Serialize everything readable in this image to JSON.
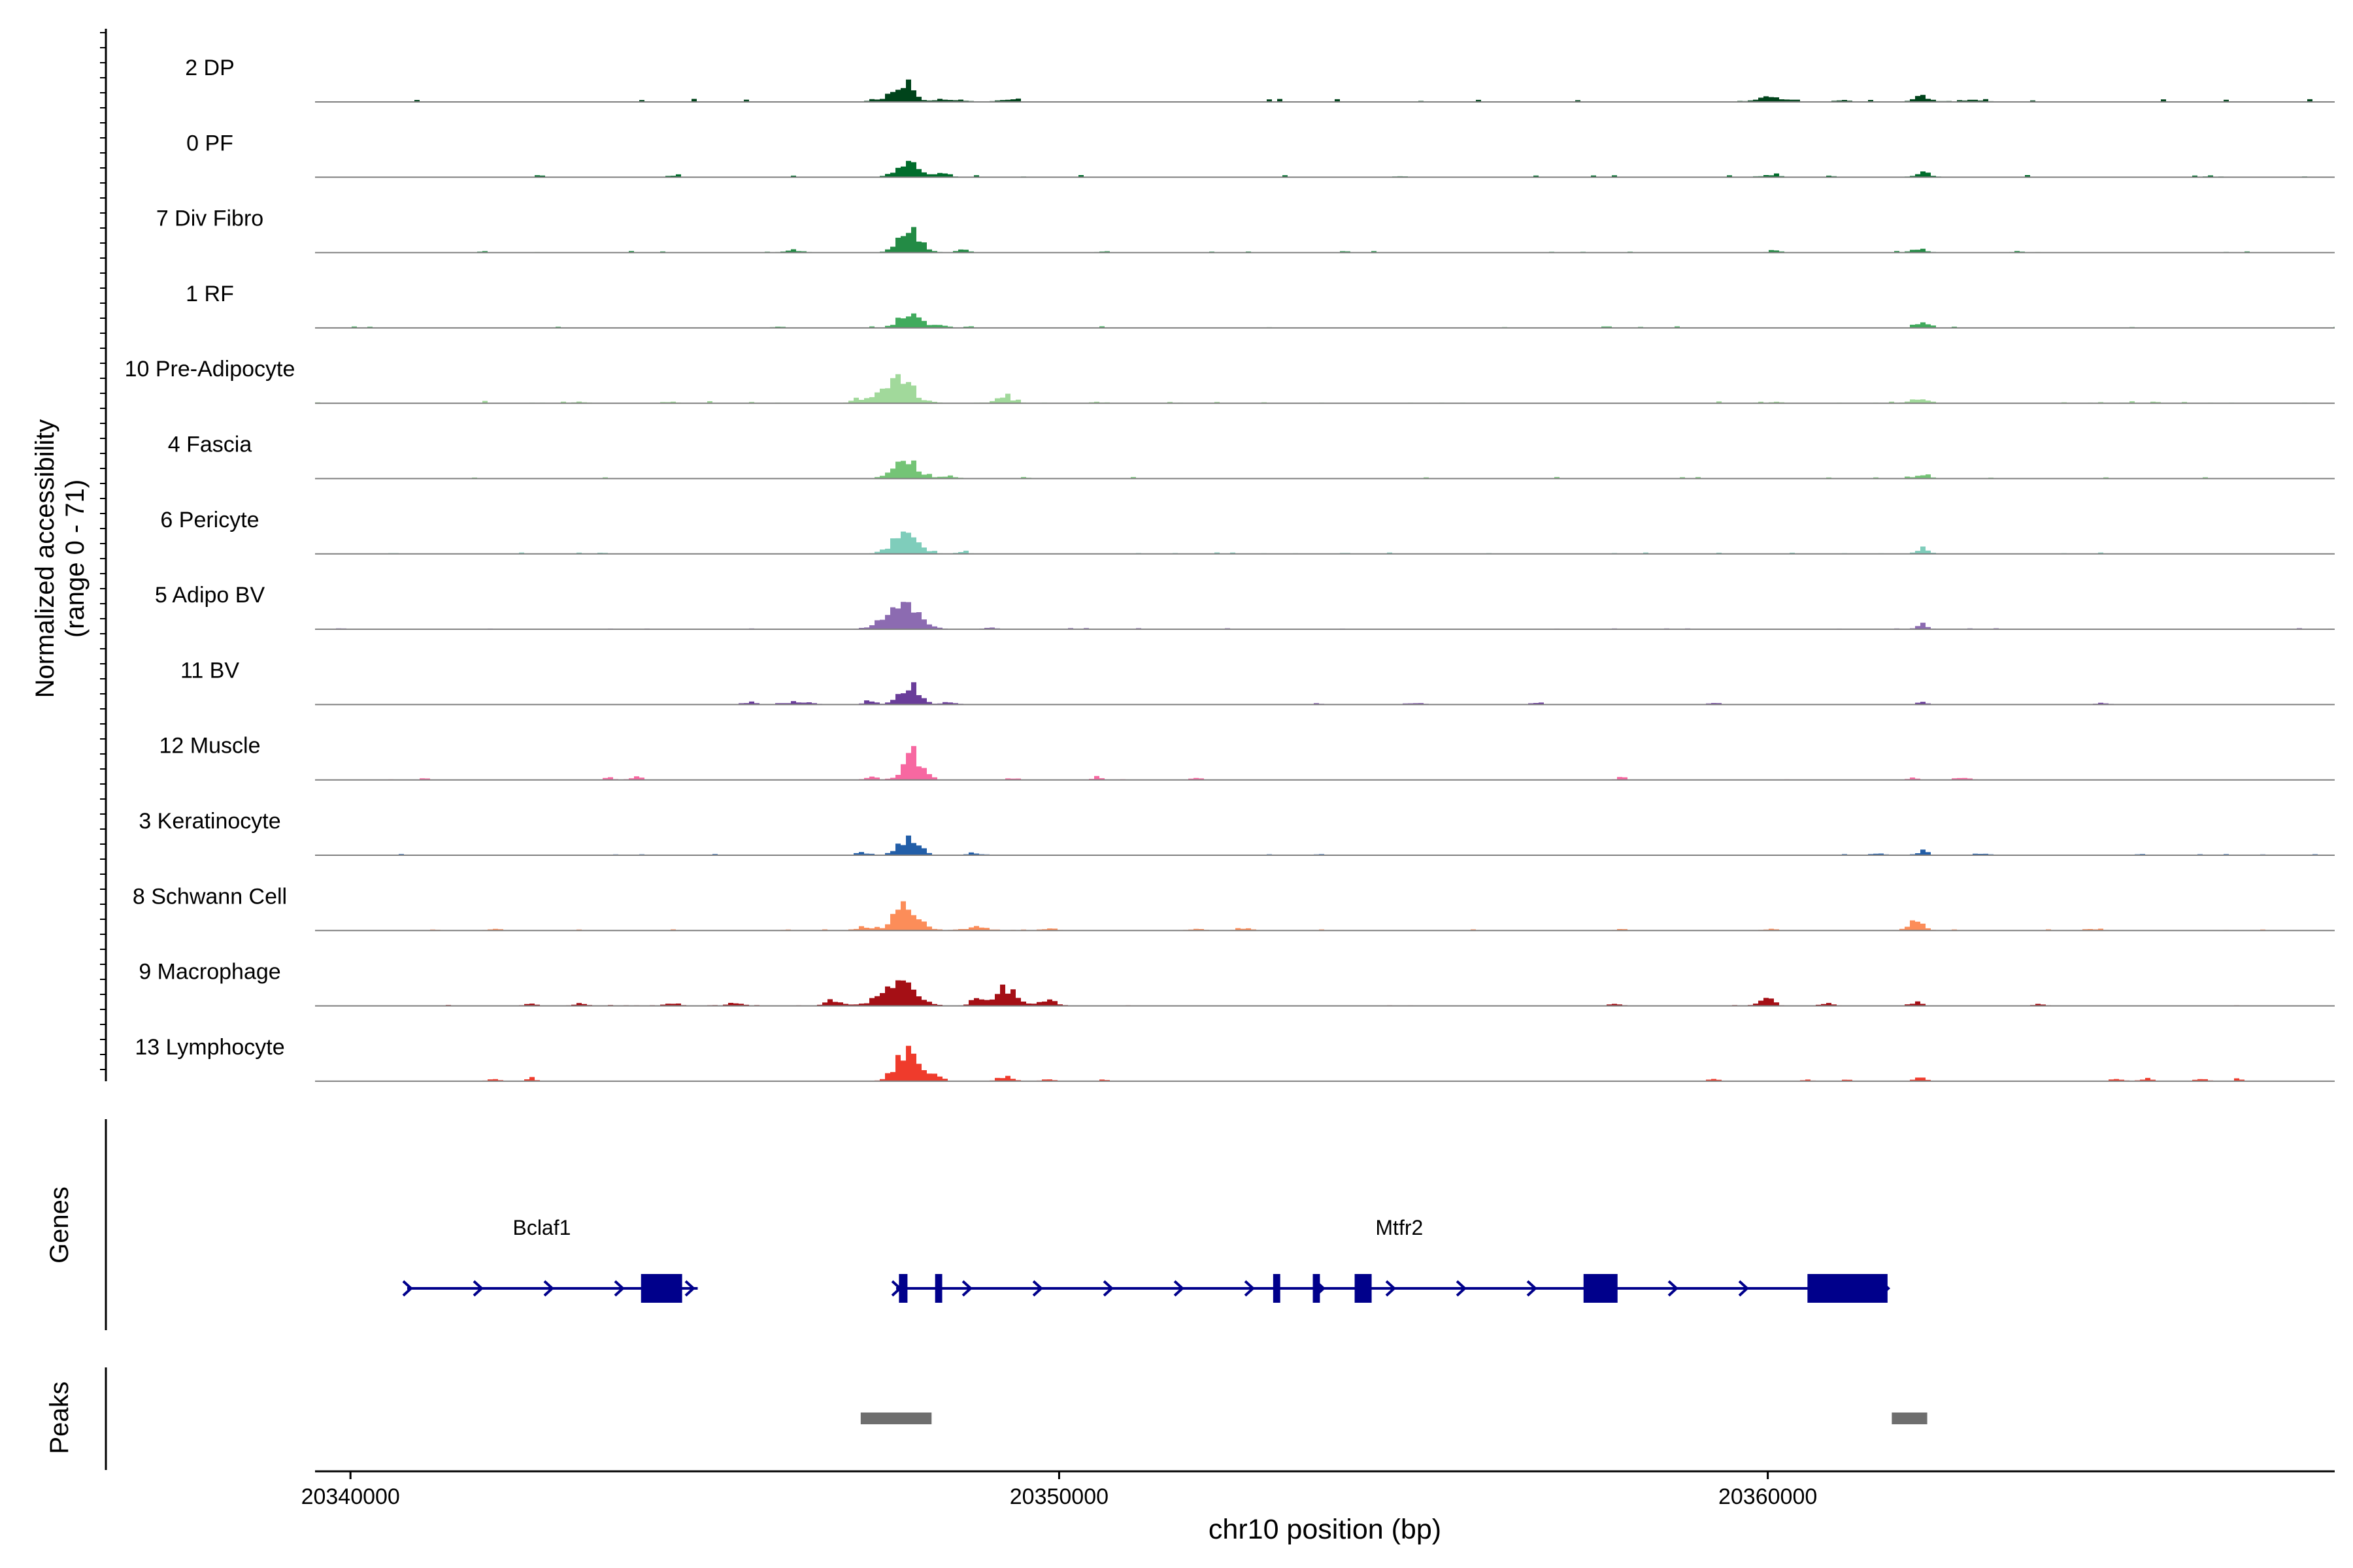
{
  "chart_data": {
    "type": "area",
    "xlabel": "chr10 position (bp)",
    "ylabel_line1": "Normalized accessibility",
    "ylabel_line2": "(range 0 - 71)",
    "xlim": [
      20339500,
      20368000
    ],
    "ylim": [
      0,
      71
    ],
    "x_ticks": [
      {
        "value": 20340000,
        "label": "20340000"
      },
      {
        "value": 20350000,
        "label": "20350000"
      },
      {
        "value": 20360000,
        "label": "20360000"
      }
    ],
    "tracks": [
      {
        "label": "2 DP",
        "color": "#00441b",
        "base": 1.0,
        "peaks": [
          [
            20347800,
            18,
            130
          ],
          [
            20347500,
            3,
            180
          ],
          [
            20348400,
            3,
            150
          ],
          [
            20360000,
            5,
            160
          ],
          [
            20362150,
            6,
            110
          ],
          [
            20349200,
            1.5,
            120
          ],
          [
            20361000,
            2,
            100
          ],
          [
            20362800,
            2,
            150
          ]
        ]
      },
      {
        "label": "0 PF",
        "color": "#006d2c",
        "base": 0.7,
        "peaks": [
          [
            20347800,
            17,
            140
          ],
          [
            20348300,
            4,
            120
          ],
          [
            20362150,
            6,
            100
          ],
          [
            20360000,
            2,
            120
          ],
          [
            20344500,
            1.5,
            80
          ],
          [
            20354800,
            1,
            80
          ]
        ]
      },
      {
        "label": "7 Div Fibro",
        "color": "#238b45",
        "base": 0.5,
        "peaks": [
          [
            20347850,
            23,
            150
          ],
          [
            20346200,
            3,
            110
          ],
          [
            20348600,
            3,
            80
          ],
          [
            20360050,
            3,
            70
          ],
          [
            20362100,
            4,
            110
          ],
          [
            20354000,
            1.5,
            60
          ],
          [
            20350600,
            1.5,
            70
          ],
          [
            20363500,
            1.5,
            70
          ]
        ]
      },
      {
        "label": "1 RF",
        "color": "#41ab5d",
        "base": 0.5,
        "peaks": [
          [
            20347850,
            16,
            150
          ],
          [
            20348300,
            4,
            80
          ],
          [
            20362150,
            6,
            100
          ],
          [
            20346000,
            1,
            80
          ]
        ]
      },
      {
        "label": "10 Pre-Adipocyte",
        "color": "#a1d99b",
        "base": 0.8,
        "peaks": [
          [
            20347700,
            24,
            200
          ],
          [
            20349200,
            7,
            110
          ],
          [
            20347200,
            4,
            100
          ],
          [
            20362100,
            4,
            120
          ],
          [
            20350500,
            1.5,
            60
          ],
          [
            20343200,
            1.5,
            80
          ],
          [
            20344500,
            1.2,
            70
          ],
          [
            20360100,
            1.5,
            70
          ]
        ]
      },
      {
        "label": "4 Fascia",
        "color": "#74c476",
        "base": 0.5,
        "peaks": [
          [
            20347800,
            18,
            170
          ],
          [
            20348400,
            3,
            100
          ],
          [
            20362150,
            5,
            100
          ]
        ]
      },
      {
        "label": "6 Pericyte",
        "color": "#7fcdbb",
        "base": 0.5,
        "peaks": [
          [
            20347800,
            21,
            180
          ],
          [
            20362150,
            6,
            90
          ],
          [
            20348600,
            2,
            100
          ],
          [
            20343500,
            1,
            80
          ],
          [
            20354000,
            1,
            60
          ]
        ]
      },
      {
        "label": "5 Adipo BV",
        "color": "#8c6bb1",
        "base": 0.4,
        "peaks": [
          [
            20347750,
            27,
            230
          ],
          [
            20349000,
            2,
            80
          ],
          [
            20362150,
            5,
            80
          ]
        ]
      },
      {
        "label": "11 BV",
        "color": "#6a3d9a",
        "base": 0.2,
        "peaks": [
          [
            20347850,
            21,
            140
          ],
          [
            20347300,
            4,
            80
          ],
          [
            20348400,
            3,
            100
          ],
          [
            20346300,
            3,
            180
          ],
          [
            20345600,
            2,
            120
          ],
          [
            20362150,
            3,
            60
          ],
          [
            20355000,
            2,
            100
          ],
          [
            20356700,
            2,
            80
          ],
          [
            20359200,
            2,
            70
          ],
          [
            20364700,
            2,
            80
          ],
          [
            20353600,
            1.5,
            60
          ]
        ]
      },
      {
        "label": "12 Muscle",
        "color": "#f768a1",
        "base": 0.2,
        "peaks": [
          [
            20347900,
            28,
            130
          ],
          [
            20347300,
            4,
            80
          ],
          [
            20343600,
            3,
            60
          ],
          [
            20344000,
            3,
            80
          ],
          [
            20350500,
            3,
            60
          ],
          [
            20351900,
            3,
            60
          ],
          [
            20357900,
            3,
            60
          ],
          [
            20349300,
            2,
            60
          ],
          [
            20362000,
            2,
            70
          ],
          [
            20341000,
            2,
            60
          ],
          [
            20362700,
            2,
            120
          ]
        ]
      },
      {
        "label": "3 Keratinocyte",
        "color": "#225ea8",
        "base": 0.4,
        "peaks": [
          [
            20347850,
            19,
            140
          ],
          [
            20347200,
            3,
            90
          ],
          [
            20348800,
            2,
            100
          ],
          [
            20362150,
            4,
            80
          ],
          [
            20361500,
            1.5,
            120
          ],
          [
            20363000,
            1.5,
            100
          ]
        ]
      },
      {
        "label": "8 Schwann Cell",
        "color": "#fc8d59",
        "base": 0.4,
        "peaks": [
          [
            20347800,
            25,
            170
          ],
          [
            20347200,
            4,
            100
          ],
          [
            20348800,
            3,
            180
          ],
          [
            20349800,
            2,
            120
          ],
          [
            20362050,
            12,
            100
          ],
          [
            20351900,
            2,
            100
          ],
          [
            20352600,
            2,
            120
          ],
          [
            20360000,
            2,
            80
          ],
          [
            20342000,
            2,
            80
          ],
          [
            20357900,
            2,
            60
          ],
          [
            20364600,
            2,
            100
          ]
        ]
      },
      {
        "label": "9 Macrophage",
        "color": "#a50f15",
        "base": 0.3,
        "peaks": [
          [
            20347700,
            25,
            230
          ],
          [
            20349200,
            21,
            150
          ],
          [
            20349800,
            6,
            120
          ],
          [
            20346800,
            6,
            120
          ],
          [
            20348800,
            6,
            100
          ],
          [
            20345400,
            4,
            100
          ],
          [
            20344500,
            3,
            100
          ],
          [
            20343200,
            3,
            80
          ],
          [
            20342500,
            2,
            100
          ],
          [
            20359950,
            8,
            100
          ],
          [
            20357800,
            3,
            80
          ],
          [
            20362050,
            4,
            80
          ],
          [
            20363800,
            2,
            80
          ],
          [
            20360800,
            2,
            100
          ]
        ]
      },
      {
        "label": "13 Lymphocyte",
        "color": "#ef3b2c",
        "base": 0.1,
        "peaks": [
          [
            20347800,
            30,
            150
          ],
          [
            20348200,
            8,
            100
          ],
          [
            20349200,
            5,
            100
          ],
          [
            20349800,
            3,
            80
          ],
          [
            20342000,
            3,
            80
          ],
          [
            20342500,
            4,
            60
          ],
          [
            20350600,
            2,
            40
          ],
          [
            20359200,
            3,
            60
          ],
          [
            20362100,
            4,
            80
          ],
          [
            20364900,
            3,
            80
          ],
          [
            20365300,
            3,
            80
          ],
          [
            20366100,
            3,
            80
          ],
          [
            20366600,
            3,
            60
          ],
          [
            20361100,
            2,
            60
          ],
          [
            20360500,
            2,
            60
          ]
        ]
      }
    ],
    "genes": [
      {
        "name": "Bclaf1",
        "strand": "+",
        "start": 20340800,
        "end": 20344900,
        "exons": [
          [
            20344100,
            20344680
          ]
        ],
        "name_pos": 20342700
      },
      {
        "name": "Mtfr2",
        "strand": "+",
        "start": 20347700,
        "end": 20361700,
        "exons": [
          [
            20347740,
            20347860
          ],
          [
            20348250,
            20348350
          ],
          [
            20353020,
            20353120
          ],
          [
            20353580,
            20353680
          ],
          [
            20354170,
            20354410
          ],
          [
            20357400,
            20357880
          ],
          [
            20360560,
            20361690
          ]
        ],
        "name_pos": 20354800
      }
    ],
    "peaks_track": [
      [
        20347200,
        20348200
      ],
      [
        20361750,
        20362250
      ]
    ],
    "panel_labels": {
      "genes": "Genes",
      "peaks": "Peaks"
    },
    "gene_color": "#00008b",
    "peak_color": "#6e6e6e"
  }
}
